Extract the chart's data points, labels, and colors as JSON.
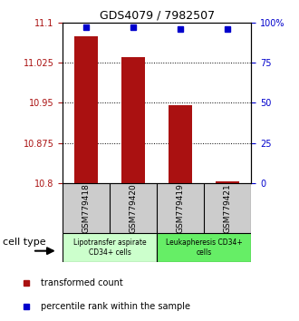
{
  "title": "GDS4079 / 7982507",
  "samples": [
    "GSM779418",
    "GSM779420",
    "GSM779419",
    "GSM779421"
  ],
  "transformed_counts": [
    11.075,
    11.035,
    10.945,
    10.803
  ],
  "percentile_ranks": [
    97,
    97,
    96,
    96
  ],
  "ylim_left": [
    10.8,
    11.1
  ],
  "ylim_right": [
    0,
    100
  ],
  "yticks_left": [
    10.8,
    10.875,
    10.95,
    11.025,
    11.1
  ],
  "yticks_right": [
    0,
    25,
    50,
    75,
    100
  ],
  "ytick_labels_left": [
    "10.8",
    "10.875",
    "10.95",
    "11.025",
    "11.1"
  ],
  "ytick_labels_right": [
    "0",
    "25",
    "50",
    "75",
    "100%"
  ],
  "bar_color": "#aa1111",
  "dot_color": "#0000cc",
  "bar_width": 0.5,
  "cell_type_colors": [
    "#ccffcc",
    "#66ee66"
  ],
  "cell_type_labels": [
    "Lipotransfer aspirate\nCD34+ cells",
    "Leukapheresis CD34+\ncells"
  ],
  "cell_type_label": "cell type",
  "legend_bar_label": "transformed count",
  "legend_dot_label": "percentile rank within the sample",
  "background_xtick": "#cccccc",
  "title_fontsize": 9
}
